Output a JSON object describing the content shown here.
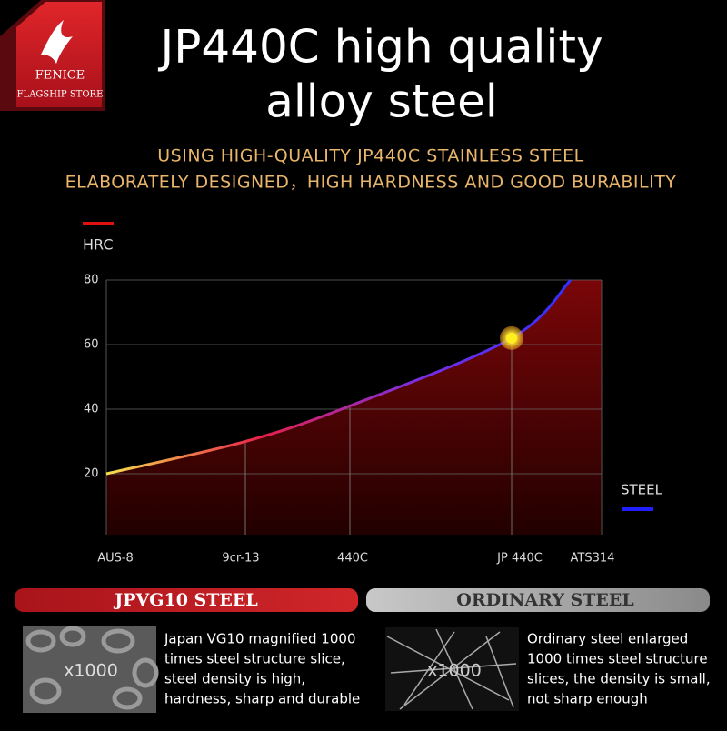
{
  "logo": {
    "brand": "FENICE",
    "store": "FLAGSHIP STORE"
  },
  "title": [
    "JP440C high quality",
    "alloy steel"
  ],
  "subtitle": [
    "USING HIGH-QUALITY JP440C STAINLESS STEEL",
    "ELABORATELY DESIGNED，HIGH HARDNESS AND GOOD BURABILITY"
  ],
  "chart_data": {
    "type": "line",
    "y_label": "HRC",
    "x_label": "STEEL",
    "categories": [
      "AUS-8",
      "9cr-13",
      "440C",
      "JP 440C",
      "ATS314"
    ],
    "values": [
      20,
      30,
      41,
      62,
      80
    ],
    "colors": [
      "#f5e04a",
      "#e8204a",
      "#7a2fe0",
      "#3030ff"
    ],
    "ylim": [
      0,
      80
    ],
    "yticks": [
      20,
      40,
      60,
      80
    ],
    "grid": true
  },
  "comparison": [
    {
      "title": "JPVG10 STEEL",
      "image_label": "x1000",
      "text": [
        "Japan VG10 magnified 1000",
        "times steel structure slice,",
        "steel density is high,",
        "hardness, sharp and durable"
      ]
    },
    {
      "title": "ORDINARY STEEL",
      "image_label": "x1000",
      "text": [
        "Ordinary steel enlarged",
        "1000 times steel structure",
        "slices, the density is small,",
        "not sharp enough"
      ]
    }
  ]
}
